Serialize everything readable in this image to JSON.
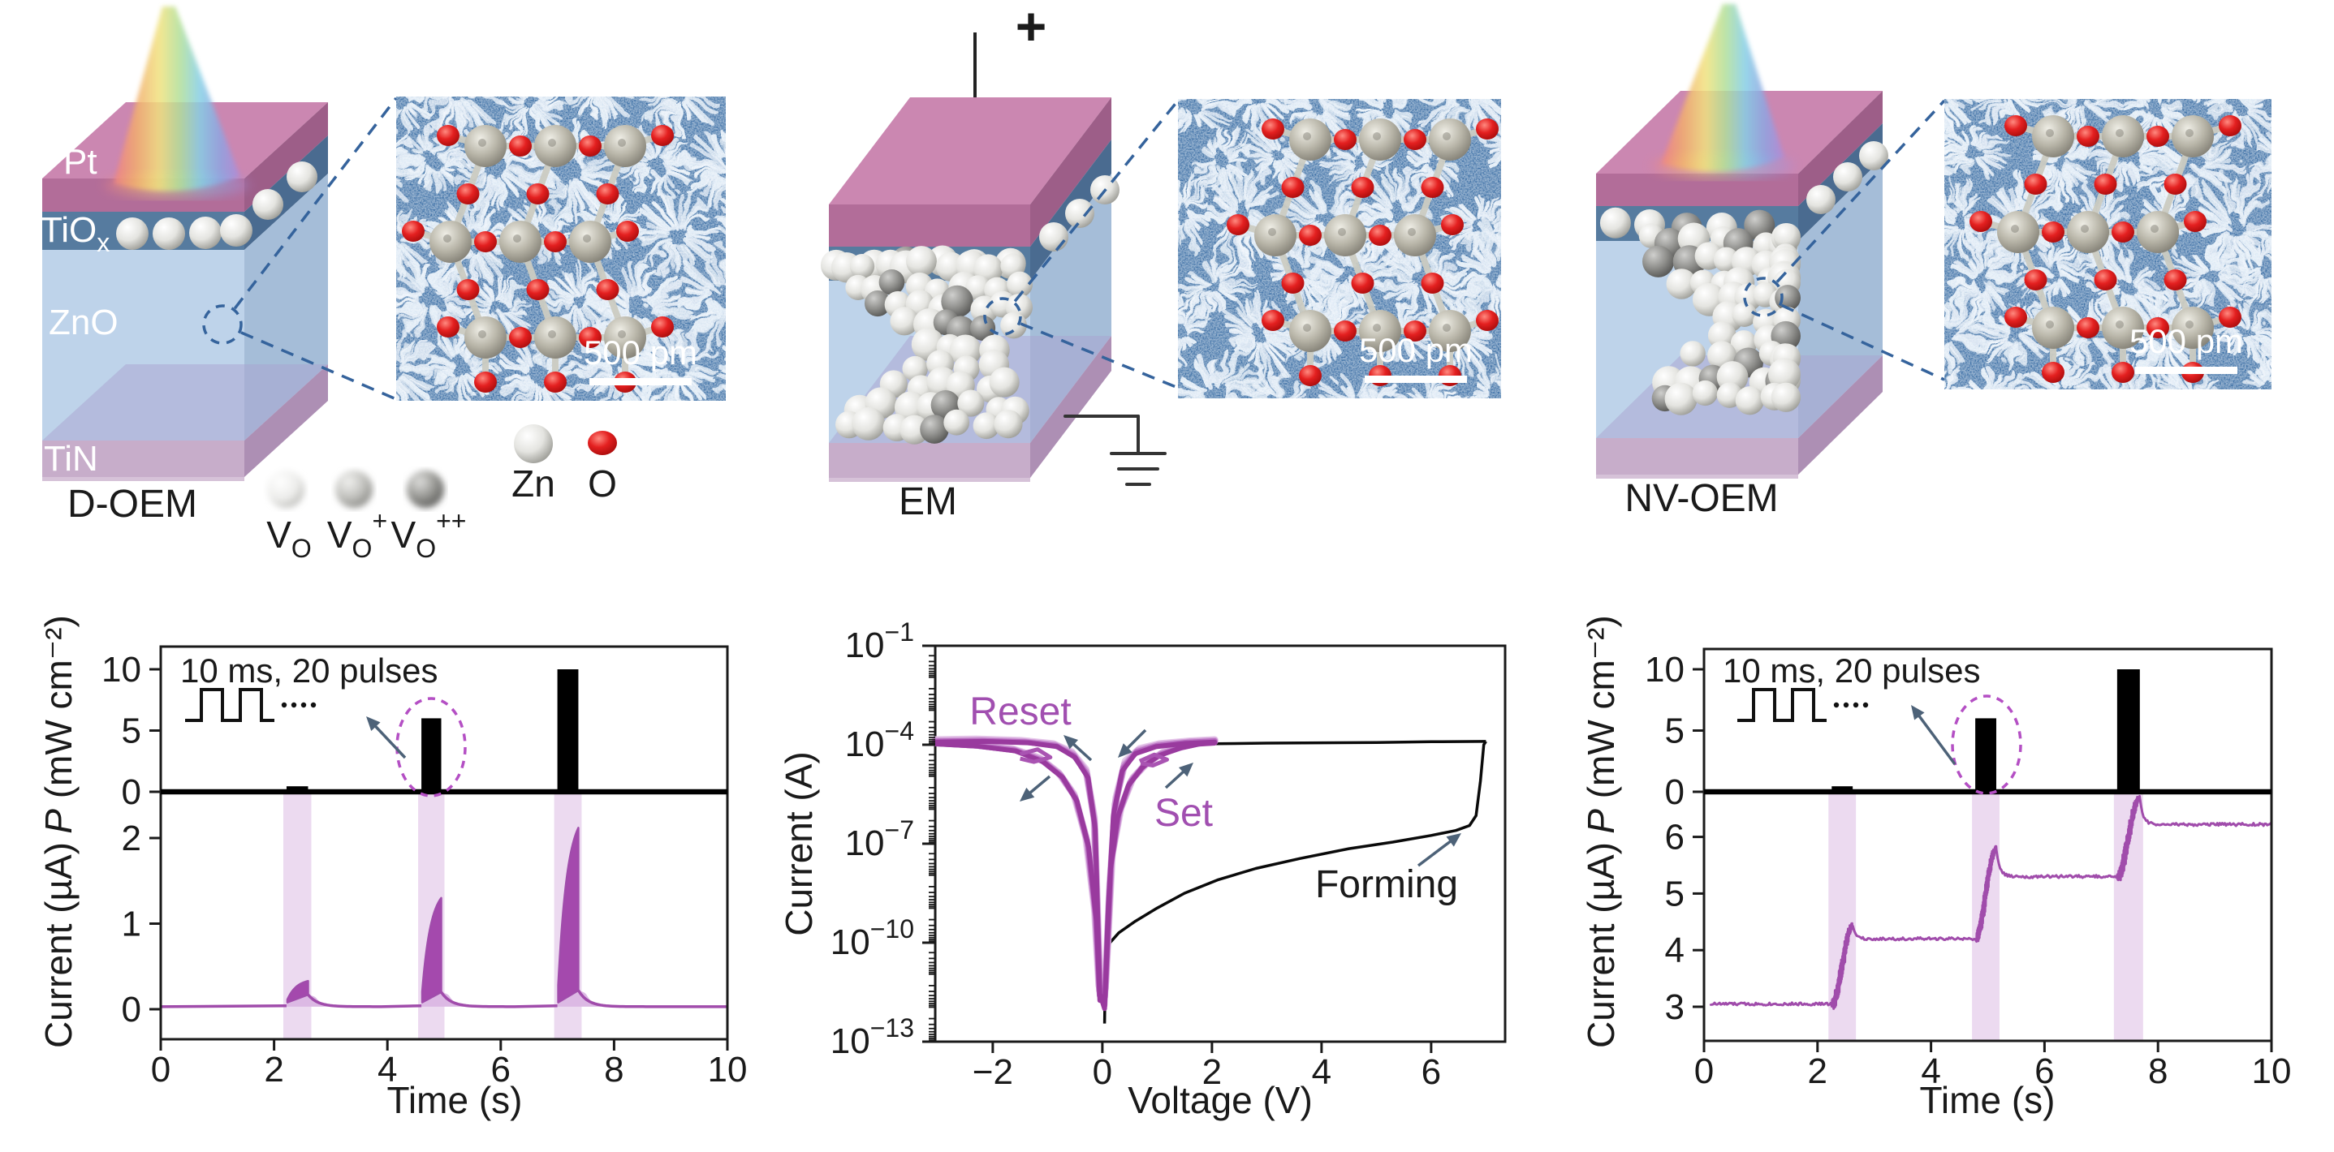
{
  "figure": {
    "background": "#ffffff",
    "panels": [
      {
        "id": "d-oem",
        "caption": "D-OEM",
        "layer_labels": {
          "pt": "Pt",
          "tiox_base": "TiO",
          "tiox_sub": "x",
          "zno": "ZnO",
          "tin": "TiN"
        },
        "tem_scale_label": "500 pm"
      },
      {
        "id": "em",
        "caption": "EM",
        "plus_electrode": "+",
        "tem_scale_label": "500 pm"
      },
      {
        "id": "nv-oem",
        "caption": "NV-OEM",
        "tem_scale_label": "500 pm"
      }
    ],
    "vacancy_legend": {
      "items": [
        {
          "base": "V",
          "sub": "O",
          "sup": ""
        },
        {
          "base": "V",
          "sub": "O",
          "sup": "+"
        },
        {
          "base": "V",
          "sub": "O",
          "sup": "++"
        }
      ]
    },
    "atom_legend": {
      "zn": "Zn",
      "o": "O"
    },
    "colors": {
      "accent_purple": "#9c3fa6",
      "trace_purple": "#a04cab",
      "blob_purple": "#a449ad",
      "pulse_band": "#ecdaf0",
      "hump_purple": "#dcb9e4",
      "tem_blue": "#4173a8",
      "bar_black": "#000000",
      "callout_blue": "#35639c",
      "arrow_slate": "#4d6278",
      "label_purple": "#a14fb0",
      "axis_ink": "#1a1a1a"
    }
  },
  "chart_data": [
    {
      "id": "doem-photoresponse",
      "type": "line",
      "title": "",
      "xlabel": "Time (s)",
      "ylabel_current": "Current (µA)",
      "ylabel_power_italic": "P",
      "ylabel_power_unit": " (mW cm⁻²)",
      "annotation": "10 ms, 20 pulses",
      "x": {
        "min": 0,
        "max": 10,
        "ticks": [
          0,
          2,
          4,
          6,
          8,
          10
        ]
      },
      "power_axis": {
        "ticks": [
          0,
          5,
          10
        ]
      },
      "current_axis": {
        "ticks": [
          0,
          1,
          2
        ]
      },
      "light_pulses": [
        {
          "t0": 2.22,
          "t1": 2.6,
          "power": 0.45
        },
        {
          "t0": 4.6,
          "t1": 4.95,
          "power": 6
        },
        {
          "t0": 7.0,
          "t1": 7.37,
          "power": 10
        }
      ],
      "current_response": {
        "baseline": 0.03,
        "peaks": [
          0.33,
          1.3,
          2.12
        ],
        "post_pulse": [
          0.17,
          0.2,
          0.22
        ]
      }
    },
    {
      "id": "iv-forming-set-reset",
      "type": "line",
      "title": "",
      "xlabel": "Voltage (V)",
      "ylabel": "Current (A)",
      "x": {
        "min": -3.05,
        "max": 7.35,
        "ticks": [
          -2,
          0,
          2,
          4,
          6
        ]
      },
      "y_log": {
        "top_exponent": -1,
        "bottom_exponent": -13,
        "major_tick_exponents": [
          -1,
          -4,
          -7,
          -10,
          -13
        ]
      },
      "labels": {
        "reset": "Reset",
        "set": "Set",
        "forming": "Forming"
      },
      "forming_curve": [
        [
          0.04,
          -12.45
        ],
        [
          0.05,
          -11.2
        ],
        [
          0.08,
          -10.3
        ],
        [
          0.14,
          -10.0
        ],
        [
          0.3,
          -9.7
        ],
        [
          0.6,
          -9.35
        ],
        [
          1.0,
          -8.95
        ],
        [
          1.5,
          -8.5
        ],
        [
          2.1,
          -8.1
        ],
        [
          2.8,
          -7.75
        ],
        [
          3.6,
          -7.45
        ],
        [
          4.5,
          -7.15
        ],
        [
          5.3,
          -6.95
        ],
        [
          6.0,
          -6.75
        ],
        [
          6.45,
          -6.6
        ],
        [
          6.7,
          -6.45
        ],
        [
          6.82,
          -6.15
        ],
        [
          6.9,
          -5.1
        ],
        [
          6.96,
          -4.0
        ],
        [
          7.0,
          -3.9
        ]
      ],
      "forming_return": [
        [
          7.0,
          -3.9
        ],
        [
          6.0,
          -3.91
        ],
        [
          5.0,
          -3.93
        ],
        [
          4.0,
          -3.94
        ],
        [
          3.0,
          -3.95
        ],
        [
          2.05,
          -3.97
        ]
      ],
      "switching_loops": [
        {
          "color": "#e3c2e8",
          "width": 9,
          "opacity": 0.9,
          "pts": [
            [
              0.06,
              -11.2
            ],
            [
              0.18,
              -7.3
            ],
            [
              0.34,
              -5.9
            ],
            [
              0.56,
              -5.0
            ],
            [
              0.82,
              -4.55
            ],
            [
              1.12,
              -4.22
            ],
            [
              1.5,
              -4.02
            ],
            [
              1.82,
              -3.92
            ],
            [
              2.05,
              -3.89
            ],
            [
              2.05,
              -3.85
            ],
            [
              1.6,
              -3.89
            ],
            [
              1.05,
              -3.97
            ],
            [
              0.68,
              -4.12
            ],
            [
              0.42,
              -4.5
            ],
            [
              0.25,
              -5.6
            ],
            [
              0.14,
              -8.2
            ],
            [
              0.05,
              -11.4
            ],
            [
              -0.05,
              -11.0
            ],
            [
              -0.15,
              -6.2
            ],
            [
              -0.3,
              -4.75
            ],
            [
              -0.56,
              -4.22
            ],
            [
              -0.9,
              -3.97
            ],
            [
              -1.5,
              -3.87
            ],
            [
              -2.3,
              -3.83
            ],
            [
              -3.05,
              -3.85
            ],
            [
              -3.05,
              -3.93
            ],
            [
              -2.35,
              -4.0
            ],
            [
              -1.65,
              -4.12
            ],
            [
              -1.15,
              -4.4
            ],
            [
              -0.8,
              -4.85
            ],
            [
              -0.52,
              -5.5
            ],
            [
              -0.3,
              -6.8
            ],
            [
              -0.14,
              -9.0
            ],
            [
              -0.06,
              -11.3
            ]
          ]
        },
        {
          "color": "#cf9bd6",
          "width": 8,
          "opacity": 0.95,
          "pts": [
            [
              0.055,
              -11.4
            ],
            [
              0.17,
              -7.45
            ],
            [
              0.32,
              -6.0
            ],
            [
              0.53,
              -5.08
            ],
            [
              0.78,
              -4.6
            ],
            [
              1.08,
              -4.26
            ],
            [
              1.47,
              -4.05
            ],
            [
              1.8,
              -3.94
            ],
            [
              2.05,
              -3.91
            ],
            [
              2.05,
              -3.87
            ],
            [
              1.58,
              -3.91
            ],
            [
              1.02,
              -4.0
            ],
            [
              0.65,
              -4.17
            ],
            [
              0.4,
              -4.6
            ],
            [
              0.23,
              -5.8
            ],
            [
              0.13,
              -8.45
            ],
            [
              0.045,
              -11.65
            ],
            [
              -0.05,
              -11.2
            ],
            [
              -0.145,
              -6.3
            ],
            [
              -0.29,
              -4.82
            ],
            [
              -0.54,
              -4.27
            ],
            [
              -0.87,
              -4.0
            ],
            [
              -1.45,
              -3.9
            ],
            [
              -2.25,
              -3.86
            ],
            [
              -3.05,
              -3.88
            ],
            [
              -3.05,
              -3.945
            ],
            [
              -2.32,
              -4.015
            ],
            [
              -1.62,
              -4.145
            ],
            [
              -1.12,
              -4.44
            ],
            [
              -0.77,
              -4.9
            ],
            [
              -0.5,
              -5.57
            ],
            [
              -0.28,
              -6.9
            ],
            [
              -0.13,
              -9.1
            ],
            [
              -0.055,
              -11.45
            ]
          ]
        },
        {
          "color": "#b76cc0",
          "width": 7,
          "opacity": 1,
          "pts": [
            [
              0.05,
              -11.6
            ],
            [
              0.16,
              -7.6
            ],
            [
              0.3,
              -6.1
            ],
            [
              0.5,
              -5.15
            ],
            [
              0.75,
              -4.65
            ],
            [
              1.05,
              -4.3
            ],
            [
              1.45,
              -4.08
            ],
            [
              1.78,
              -3.96
            ],
            [
              2.05,
              -3.93
            ],
            [
              2.05,
              -3.89
            ],
            [
              1.55,
              -3.93
            ],
            [
              1.0,
              -4.03
            ],
            [
              0.62,
              -4.22
            ],
            [
              0.38,
              -4.7
            ],
            [
              0.22,
              -6.0
            ],
            [
              0.12,
              -8.7
            ],
            [
              0.04,
              -11.9
            ],
            [
              -0.05,
              -11.4
            ],
            [
              -0.14,
              -6.4
            ],
            [
              -0.28,
              -4.9
            ],
            [
              -0.52,
              -4.33
            ],
            [
              -0.85,
              -4.03
            ],
            [
              -1.4,
              -3.92
            ],
            [
              -2.2,
              -3.88
            ],
            [
              -3.05,
              -3.9
            ],
            [
              -3.05,
              -3.96
            ],
            [
              -2.3,
              -4.03
            ],
            [
              -1.6,
              -4.17
            ],
            [
              -1.1,
              -4.48
            ],
            [
              -0.75,
              -4.95
            ],
            [
              -0.48,
              -5.65
            ],
            [
              -0.27,
              -7.0
            ],
            [
              -0.12,
              -9.2
            ],
            [
              -0.05,
              -11.6
            ]
          ]
        },
        {
          "color": "#993a9e",
          "width": 6,
          "opacity": 1,
          "pts": [
            [
              0.045,
              -11.8
            ],
            [
              0.15,
              -7.75
            ],
            [
              0.28,
              -6.2
            ],
            [
              0.47,
              -5.25
            ],
            [
              0.72,
              -4.7
            ],
            [
              1.02,
              -4.34
            ],
            [
              1.42,
              -4.1
            ],
            [
              1.76,
              -3.98
            ],
            [
              2.05,
              -3.95
            ],
            [
              2.05,
              -3.92
            ],
            [
              1.52,
              -3.96
            ],
            [
              0.98,
              -4.06
            ],
            [
              0.6,
              -4.27
            ],
            [
              0.36,
              -4.8
            ],
            [
              0.2,
              -6.15
            ],
            [
              0.11,
              -8.9
            ],
            [
              0.04,
              -12.0
            ],
            [
              -0.045,
              -11.55
            ],
            [
              -0.13,
              -6.55
            ],
            [
              -0.26,
              -5.0
            ],
            [
              -0.5,
              -4.38
            ],
            [
              -0.82,
              -4.06
            ],
            [
              -1.35,
              -3.94
            ],
            [
              -2.15,
              -3.9
            ],
            [
              -3.05,
              -3.92
            ],
            [
              -3.05,
              -3.975
            ],
            [
              -2.28,
              -4.045
            ],
            [
              -1.58,
              -4.19
            ],
            [
              -1.08,
              -4.52
            ],
            [
              -0.72,
              -5.0
            ],
            [
              -0.46,
              -5.72
            ],
            [
              -0.25,
              -7.1
            ],
            [
              -0.11,
              -9.35
            ],
            [
              -0.045,
              -11.75
            ]
          ]
        }
      ],
      "loop_squiggles": [
        {
          "color": "#a954b2",
          "width": 5,
          "pts": [
            [
              -1.5,
              -4.28
            ],
            [
              -1.18,
              -4.14
            ],
            [
              -0.95,
              -4.38
            ],
            [
              -1.25,
              -4.52
            ],
            [
              -1.5,
              -4.42
            ]
          ]
        },
        {
          "color": "#a954b2",
          "width": 5,
          "pts": [
            [
              0.68,
              -4.5
            ],
            [
              0.95,
              -4.3
            ],
            [
              1.18,
              -4.45
            ],
            [
              0.92,
              -4.63
            ],
            [
              0.7,
              -4.56
            ]
          ]
        }
      ]
    },
    {
      "id": "nvoem-photoresponse",
      "type": "line",
      "title": "",
      "xlabel": "Time (s)",
      "ylabel_current": "Current (µA)",
      "ylabel_power_italic": "P",
      "ylabel_power_unit": " (mW cm⁻²)",
      "annotation": "10 ms, 20 pulses",
      "x": {
        "min": 0,
        "max": 10,
        "ticks": [
          0,
          2,
          4,
          6,
          8,
          10
        ]
      },
      "power_axis": {
        "ticks": [
          0,
          5,
          10
        ]
      },
      "current_axis": {
        "ticks": [
          3,
          4,
          5,
          6
        ]
      },
      "light_pulses": [
        {
          "t0": 2.25,
          "t1": 2.62,
          "power": 0.45
        },
        {
          "t0": 4.78,
          "t1": 5.15,
          "power": 6
        },
        {
          "t0": 7.28,
          "t1": 7.68,
          "power": 10
        }
      ],
      "current_response": {
        "baseline": 3.05,
        "plateaus": [
          4.2,
          5.3,
          6.22
        ],
        "peaks": [
          4.42,
          5.78,
          6.68
        ]
      }
    }
  ]
}
